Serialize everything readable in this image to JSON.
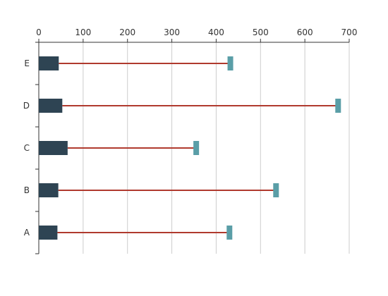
{
  "chart_data": {
    "type": "bar",
    "orientation": "horizontal",
    "categories": [
      "A",
      "B",
      "C",
      "D",
      "E"
    ],
    "series": [
      {
        "values": [
          42,
          44,
          65,
          53,
          45
        ]
      },
      {
        "values": [
          430,
          535,
          355,
          675,
          432
        ]
      }
    ],
    "x_axis": {
      "position": "top",
      "range": [
        0,
        700
      ],
      "ticks": [
        0,
        100,
        200,
        300,
        400,
        500,
        600,
        700
      ]
    },
    "grid": "vertical",
    "legend": "none",
    "title": "",
    "xlabel": "",
    "ylabel": "",
    "colors": {
      "start_bar": "#2e4453",
      "connector": "#b03a2e",
      "end_marker": "#5a9ea7",
      "grid": "#cccccc",
      "axis": "#333333"
    }
  }
}
